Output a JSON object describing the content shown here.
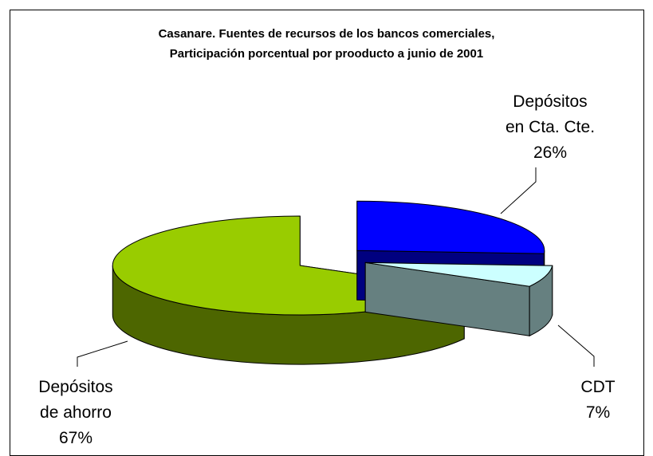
{
  "chart_data": {
    "type": "pie",
    "title": "Casanare.  Fuentes de recursos de los bancos comerciales,\nParticipación porcentual por prooducto a junio de 2001",
    "categories": [
      "Depósitos\nen Cta. Cte.",
      "CDT",
      "Depósitos\nde ahorro"
    ],
    "values": [
      26,
      7,
      67
    ],
    "value_labels": [
      "26%",
      "7%",
      "67%"
    ],
    "colors": [
      "#0000ff",
      "#ccffff",
      "#99cc00"
    ]
  }
}
